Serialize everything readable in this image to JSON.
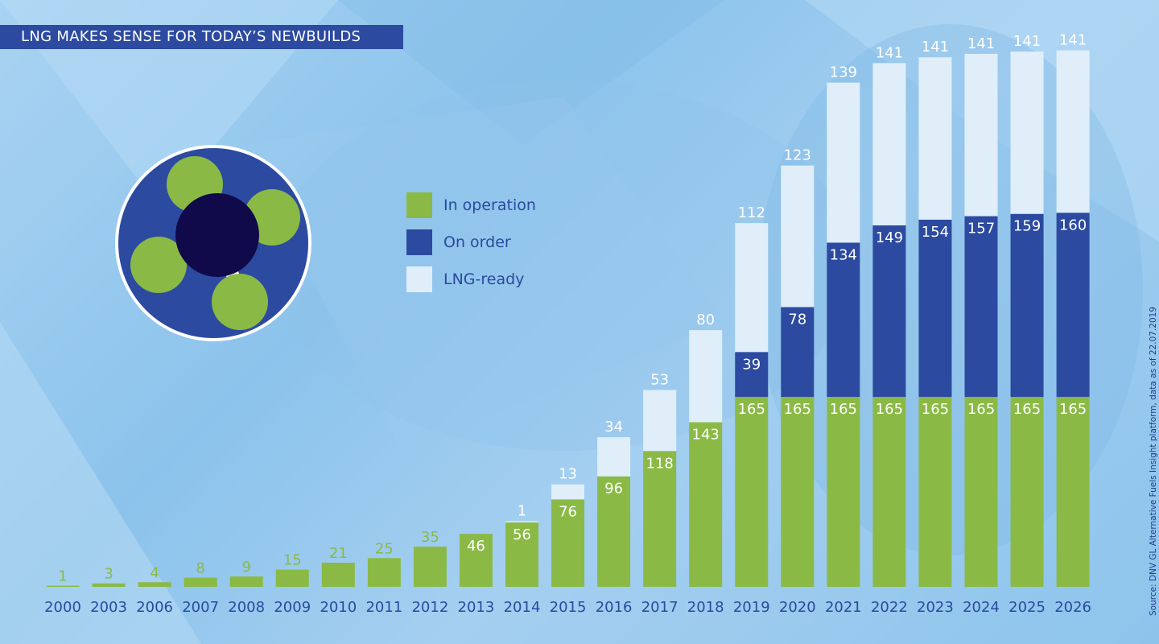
{
  "title": "LNG MAKES SENSE FOR TODAY’S NEWBUILDS",
  "source": "Source: DNV GL Alternative Fuels Insight platform, data as of 22.07.2019",
  "colors": {
    "in_operation": "#8aba45",
    "on_order": "#2c4aa0",
    "lng_ready": "#e0eefa",
    "text_blue": "#2a4a9e"
  },
  "chart_data": {
    "type": "bar",
    "stacked": true,
    "title": "LNG MAKES SENSE FOR TODAY’S NEWBUILDS",
    "categories": [
      "2000",
      "2003",
      "2006",
      "2007",
      "2008",
      "2009",
      "2010",
      "2011",
      "2012",
      "2013",
      "2014",
      "2015",
      "2016",
      "2017",
      "2018",
      "2019",
      "2020",
      "2021",
      "2022",
      "2023",
      "2024",
      "2025",
      "2026"
    ],
    "series": [
      {
        "name": "In operation",
        "values": [
          1,
          3,
          4,
          8,
          9,
          15,
          21,
          25,
          35,
          46,
          56,
          76,
          96,
          118,
          143,
          165,
          165,
          165,
          165,
          165,
          165,
          165,
          165
        ]
      },
      {
        "name": "On order",
        "values": [
          0,
          0,
          0,
          0,
          0,
          0,
          0,
          0,
          0,
          0,
          0,
          0,
          0,
          0,
          0,
          39,
          78,
          134,
          149,
          154,
          157,
          159,
          160
        ]
      },
      {
        "name": "LNG-ready",
        "values": [
          0,
          0,
          0,
          0,
          0,
          0,
          0,
          0,
          0,
          0,
          1,
          13,
          34,
          53,
          80,
          112,
          123,
          139,
          141,
          141,
          141,
          141,
          141
        ]
      }
    ],
    "legend_position": "top-center",
    "grid": false
  }
}
